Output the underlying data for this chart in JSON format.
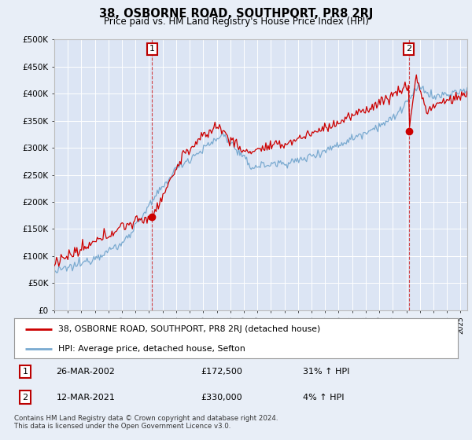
{
  "title": "38, OSBORNE ROAD, SOUTHPORT, PR8 2RJ",
  "subtitle": "Price paid vs. HM Land Registry's House Price Index (HPI)",
  "background_color": "#e8eef7",
  "plot_bg_color": "#dce5f4",
  "ylim": [
    0,
    500000
  ],
  "yticks": [
    0,
    50000,
    100000,
    150000,
    200000,
    250000,
    300000,
    350000,
    400000,
    450000,
    500000
  ],
  "ytick_labels": [
    "£0",
    "£50K",
    "£100K",
    "£150K",
    "£200K",
    "£250K",
    "£300K",
    "£350K",
    "£400K",
    "£450K",
    "£500K"
  ],
  "sale1_date": 2002.22,
  "sale1_price": 172500,
  "sale1_label": "1",
  "sale2_date": 2021.19,
  "sale2_price": 330000,
  "sale2_label": "2",
  "legend_line1": "38, OSBORNE ROAD, SOUTHPORT, PR8 2RJ (detached house)",
  "legend_line2": "HPI: Average price, detached house, Sefton",
  "table_row1": [
    "1",
    "26-MAR-2002",
    "£172,500",
    "31% ↑ HPI"
  ],
  "table_row2": [
    "2",
    "12-MAR-2021",
    "£330,000",
    "4% ↑ HPI"
  ],
  "footer": "Contains HM Land Registry data © Crown copyright and database right 2024.\nThis data is licensed under the Open Government Licence v3.0.",
  "line_red_color": "#cc0000",
  "line_blue_color": "#7aaad0",
  "dashed_color": "#cc0000",
  "xlim_start": 1995.0,
  "xlim_end": 2025.5
}
